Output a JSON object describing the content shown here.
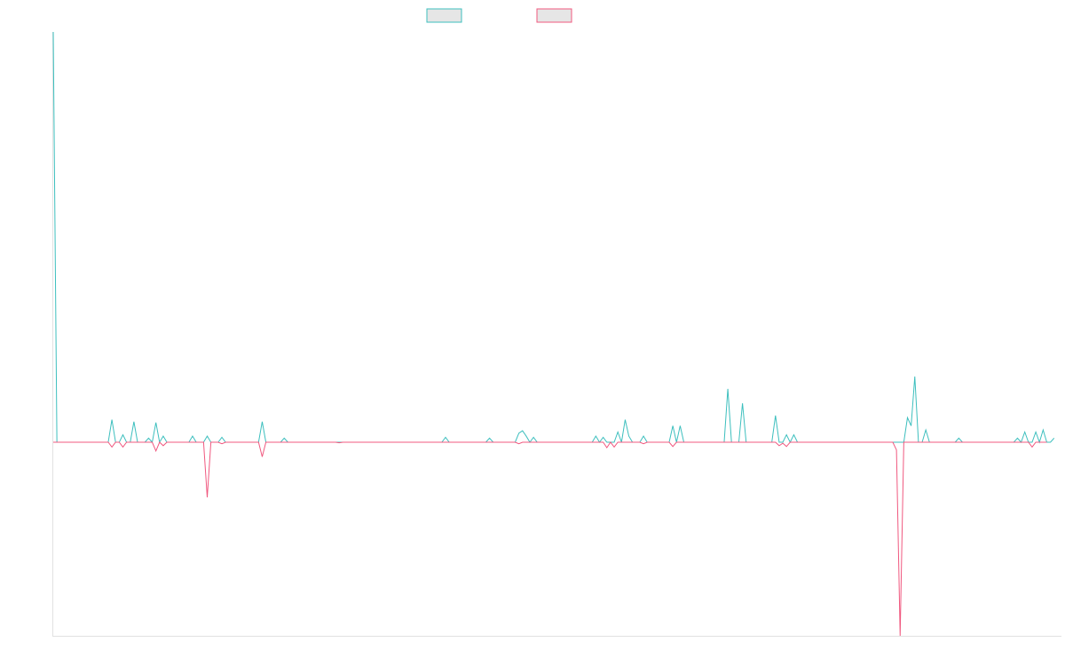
{
  "chart_data": {
    "type": "line",
    "title": "",
    "xlabel": "",
    "ylabel": "",
    "legend": "top-center",
    "grid": false,
    "x_count": 276,
    "y_range": [
      -100,
      100
    ],
    "series": [
      {
        "color": "#3dbfbe",
        "values": [
          100,
          0,
          0,
          0,
          0,
          0,
          0,
          0,
          0,
          0,
          0,
          0,
          0,
          0,
          0,
          0,
          5.5,
          0,
          0,
          1.8,
          0,
          0,
          5,
          0,
          0,
          0,
          1,
          0,
          4.8,
          0,
          1.5,
          0,
          0,
          0,
          0,
          0,
          0,
          0,
          1.5,
          0,
          0,
          0,
          1.5,
          0,
          0,
          0,
          1.2,
          0,
          0,
          0,
          0,
          0,
          0,
          0,
          0,
          0,
          0,
          5,
          0,
          0,
          0,
          0,
          0,
          1,
          0,
          0,
          0,
          0,
          0,
          0,
          0,
          0,
          0,
          0,
          0,
          0,
          0,
          0,
          0,
          0,
          0,
          0,
          0,
          0,
          0,
          0,
          0,
          0,
          0,
          0,
          0,
          0,
          0,
          0,
          0,
          0,
          0,
          0,
          0,
          0,
          0,
          0,
          0,
          0,
          0,
          0,
          0,
          1.2,
          0,
          0,
          0,
          0,
          0,
          0,
          0,
          0,
          0,
          0,
          0,
          1,
          0,
          0,
          0,
          0,
          0,
          0,
          0,
          2.2,
          2.8,
          1.5,
          0,
          1.2,
          0,
          0,
          0,
          0,
          0,
          0,
          0,
          0,
          0,
          0,
          0,
          0,
          0,
          0,
          0,
          0,
          1.5,
          0,
          1.2,
          0,
          0,
          0,
          2.5,
          0,
          5.5,
          1.5,
          0,
          0,
          0,
          1.5,
          0,
          0,
          0,
          0,
          0,
          0,
          0,
          4,
          0,
          4,
          0,
          0,
          0,
          0,
          0,
          0,
          0,
          0,
          0,
          0,
          0,
          0,
          13,
          0,
          0,
          0,
          9.5,
          0,
          0,
          0,
          0,
          0,
          0,
          0,
          0,
          6.5,
          0,
          0,
          1.8,
          0,
          1.8,
          0,
          0,
          0,
          0,
          0,
          0,
          0,
          0,
          0,
          0,
          0,
          0,
          0,
          0,
          0,
          0,
          0,
          0,
          0,
          0,
          0,
          0,
          0,
          0,
          0,
          0,
          0,
          0,
          0,
          0,
          6,
          4,
          16,
          0,
          0,
          3,
          0,
          0,
          0,
          0,
          0,
          0,
          0,
          0,
          1,
          0,
          0,
          0,
          0,
          0,
          0,
          0,
          0,
          0,
          0,
          0,
          0,
          0,
          0,
          0,
          1,
          0,
          2.5,
          0,
          0,
          2.5,
          0,
          3,
          0,
          0,
          1
        ]
      },
      {
        "color": "#f0587f",
        "values": [
          0,
          0,
          0,
          0,
          0,
          0,
          0,
          0,
          0,
          0,
          0,
          0,
          0,
          0,
          0,
          0,
          -2.5,
          0,
          0,
          -2.5,
          0,
          0,
          0,
          0,
          0,
          0,
          0,
          0,
          -4.5,
          0,
          -1.8,
          0,
          0,
          0,
          0,
          0,
          0,
          0,
          0,
          0,
          0,
          0,
          -28.5,
          0,
          0,
          0,
          -0.8,
          0,
          0,
          0,
          0,
          0,
          0,
          0,
          0,
          0,
          0,
          -7.5,
          0,
          0,
          0,
          0,
          0,
          0,
          0,
          0,
          0,
          0,
          0,
          0,
          0,
          0,
          0,
          0,
          0,
          0,
          0,
          0,
          -0.3,
          0,
          0,
          0,
          0,
          0,
          0,
          0,
          0,
          0,
          0,
          0,
          0,
          0,
          0,
          0,
          0,
          0,
          0,
          0,
          0,
          0,
          0,
          0,
          0,
          0,
          0,
          0,
          0,
          0,
          0,
          0,
          0,
          0,
          0,
          0,
          0,
          0,
          0,
          0,
          0,
          0,
          0,
          0,
          0,
          0,
          0,
          0,
          0,
          -0.8,
          0,
          0,
          0,
          0,
          0,
          0,
          0,
          0,
          0,
          0,
          0,
          0,
          0,
          0,
          0,
          0,
          0,
          0,
          0,
          0,
          0,
          0,
          0,
          -2.8,
          0,
          -2.5,
          0,
          0,
          0,
          0,
          0,
          0,
          0,
          -0.8,
          0,
          0,
          0,
          0,
          0,
          0,
          0,
          -2.2,
          0,
          0,
          0,
          0,
          0,
          0,
          0,
          0,
          0,
          0,
          0,
          0,
          0,
          0,
          0,
          0,
          0,
          0,
          0,
          0,
          0,
          0,
          0,
          0,
          0,
          0,
          0,
          0,
          -1.8,
          -0.5,
          -2.2,
          0,
          0,
          0,
          0,
          0,
          0,
          0,
          0,
          0,
          0,
          0,
          0,
          0,
          0,
          0,
          0,
          0,
          0,
          0,
          0,
          0,
          0,
          0,
          0,
          0,
          0,
          0,
          0,
          0,
          -4,
          -100,
          0,
          0,
          0,
          0,
          0,
          0,
          0,
          0,
          0,
          0,
          0,
          0,
          0,
          0,
          0,
          0,
          0,
          0,
          0,
          0,
          0,
          0,
          0,
          0,
          0,
          0,
          0,
          0,
          0,
          0,
          0,
          0,
          0,
          0,
          0,
          -2.5,
          0,
          0,
          0,
          0
        ]
      }
    ]
  }
}
